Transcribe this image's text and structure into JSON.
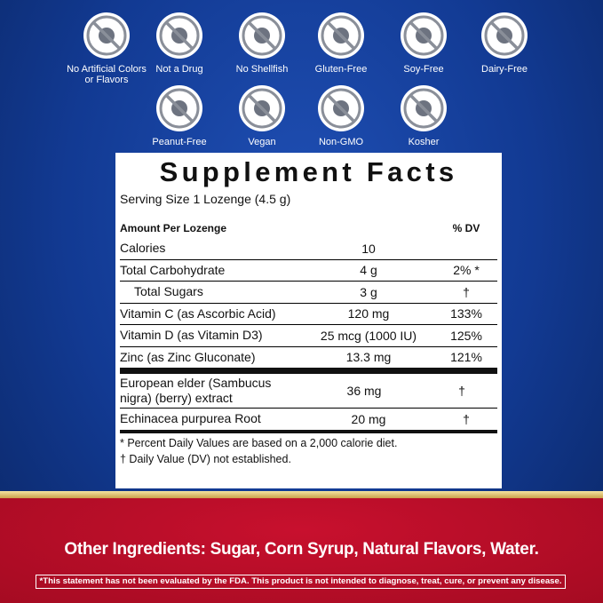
{
  "badges": [
    "No Artificial Colors or Flavors",
    "Not a Drug",
    "No Shellfish",
    "Gluten-Free",
    "Soy-Free",
    "Dairy-Free",
    "Peanut-Free",
    "Vegan",
    "Non-GMO",
    "Kosher"
  ],
  "facts": {
    "title": "Supplement Facts",
    "serving_size": "Serving Size 1 Lozenge (4.5 g)",
    "amount_header": "Amount Per Lozenge",
    "dv_header": "% DV",
    "rows": [
      {
        "name": "Calories",
        "amount": "10"
      },
      {
        "name": "Total Carbohydrate",
        "amount": "4 g",
        "dv": "2% *"
      },
      {
        "name": "Total Sugars",
        "amount": "3 g",
        "dv": "†",
        "indent": true
      },
      {
        "name": "Vitamin C (as Ascorbic Acid)",
        "amount": "120 mg",
        "dv": "133%"
      },
      {
        "name": "Vitamin D (as Vitamin D3)",
        "amount": "25 mcg (1000 IU)",
        "dv": "125%"
      },
      {
        "name": "Zinc (as Zinc Gluconate)",
        "amount": "13.3 mg",
        "dv": "121%"
      }
    ],
    "botanicals": [
      {
        "name": "European elder (Sambucus nigra) (berry) extract",
        "amount": "36 mg",
        "dv": "†"
      },
      {
        "name": "Echinacea purpurea Root",
        "amount": "20 mg",
        "dv": "†"
      }
    ],
    "footnotes": [
      "* Percent Daily Values are based on a 2,000 calorie diet.",
      "†  Daily Value (DV) not established."
    ]
  },
  "other_ingredients": "Other Ingredients: Sugar, Corn Syrup, Natural Flavors, Water.",
  "disclaimer": "*This statement has not been evaluated by the FDA. This product is not intended to diagnose, treat, cure, or prevent any disease."
}
